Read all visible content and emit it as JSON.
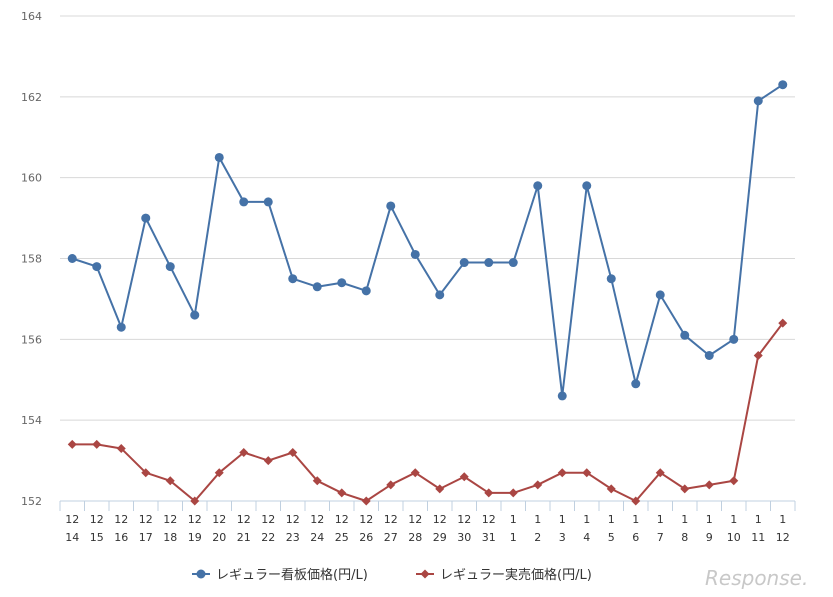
{
  "chart_data": {
    "type": "line",
    "categories": [
      [
        "12",
        "14"
      ],
      [
        "12",
        "15"
      ],
      [
        "12",
        "16"
      ],
      [
        "12",
        "17"
      ],
      [
        "12",
        "18"
      ],
      [
        "12",
        "19"
      ],
      [
        "12",
        "20"
      ],
      [
        "12",
        "21"
      ],
      [
        "12",
        "22"
      ],
      [
        "12",
        "23"
      ],
      [
        "12",
        "24"
      ],
      [
        "12",
        "25"
      ],
      [
        "12",
        "26"
      ],
      [
        "12",
        "27"
      ],
      [
        "12",
        "28"
      ],
      [
        "12",
        "29"
      ],
      [
        "12",
        "30"
      ],
      [
        "12",
        "31"
      ],
      [
        "1",
        "1"
      ],
      [
        "1",
        "2"
      ],
      [
        "1",
        "3"
      ],
      [
        "1",
        "4"
      ],
      [
        "1",
        "5"
      ],
      [
        "1",
        "6"
      ],
      [
        "1",
        "7"
      ],
      [
        "1",
        "8"
      ],
      [
        "1",
        "9"
      ],
      [
        "1",
        "10"
      ],
      [
        "1",
        "11"
      ],
      [
        "1",
        "12"
      ]
    ],
    "series": [
      {
        "name": "レギュラー看板価格(円/L)",
        "color": "#4572a7",
        "marker": "circle",
        "values": [
          158.0,
          157.8,
          156.3,
          159.0,
          157.8,
          156.6,
          160.5,
          159.4,
          159.4,
          157.5,
          157.3,
          157.4,
          157.2,
          159.3,
          158.1,
          157.1,
          157.9,
          157.9,
          157.9,
          159.8,
          154.6,
          159.8,
          157.5,
          154.9,
          157.1,
          156.1,
          155.6,
          156.0,
          161.9,
          162.3
        ]
      },
      {
        "name": "レギュラー実売価格(円/L)",
        "color": "#aa4643",
        "marker": "diamond",
        "values": [
          153.4,
          153.4,
          153.3,
          152.7,
          152.5,
          152.0,
          152.7,
          153.2,
          153.0,
          153.2,
          152.5,
          152.2,
          152.0,
          152.4,
          152.7,
          152.3,
          152.6,
          152.2,
          152.2,
          152.4,
          152.7,
          152.7,
          152.3,
          152.0,
          152.7,
          152.3,
          152.4,
          152.5,
          155.6,
          156.4
        ]
      }
    ],
    "ylim": [
      152,
      164
    ],
    "yticks": [
      152,
      154,
      156,
      158,
      160,
      162,
      164
    ],
    "grid": true,
    "legend_position": "bottom"
  },
  "watermark": "Response."
}
